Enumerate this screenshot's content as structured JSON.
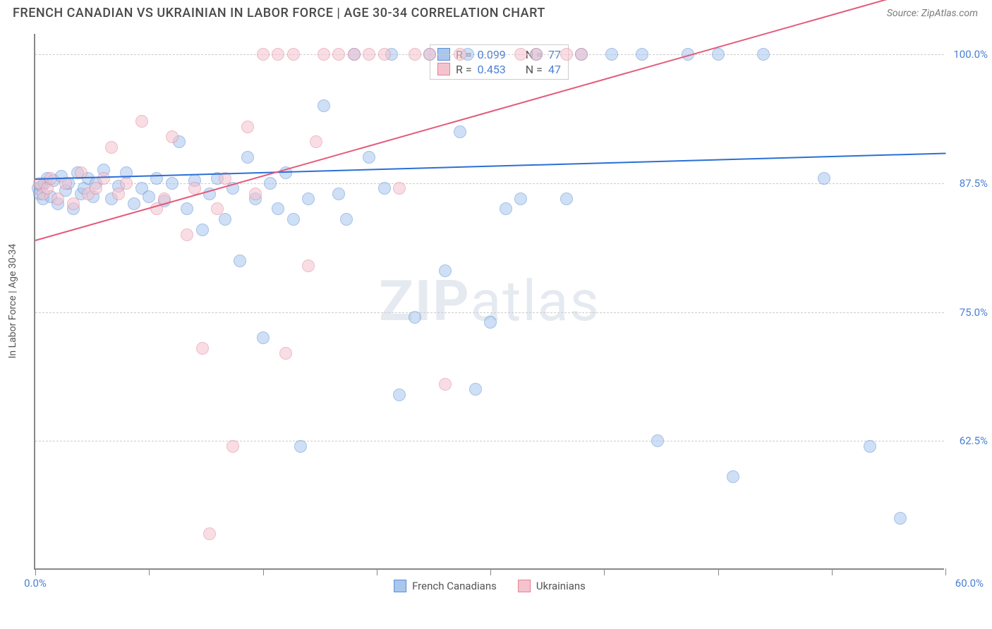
{
  "header": {
    "title": "FRENCH CANADIAN VS UKRAINIAN IN LABOR FORCE | AGE 30-34 CORRELATION CHART",
    "source": "Source: ZipAtlas.com"
  },
  "chart": {
    "type": "scatter",
    "background_color": "#ffffff",
    "grid_color": "#cccccc",
    "axis_color": "#888888",
    "ylabel": "In Labor Force | Age 30-34",
    "label_color": "#555555",
    "label_fontsize": 14,
    "xlim": [
      0,
      60
    ],
    "ylim": [
      50,
      102
    ],
    "x_tick_positions": [
      0,
      7.5,
      15,
      22.5,
      30,
      37.5,
      45,
      52.5,
      60
    ],
    "x_tick_labels": {
      "0": "0.0%",
      "60": "60.0%"
    },
    "y_gridlines": [
      62.5,
      75.0,
      87.5,
      100.0
    ],
    "y_tick_labels": [
      "62.5%",
      "75.0%",
      "87.5%",
      "100.0%"
    ],
    "tick_label_color": "#4a7fd4",
    "tick_label_fontsize": 15,
    "point_radius": 9,
    "point_opacity": 0.55,
    "series": [
      {
        "name": "French Canadians",
        "fill": "#a9c6ed",
        "stroke": "#5b8fd6",
        "trend": {
          "color": "#2a6fd6",
          "y_at_x0": 88.0,
          "y_at_x60": 90.5
        },
        "stats": {
          "R": "0.099",
          "N": "77"
        },
        "points": [
          [
            0.2,
            87.0
          ],
          [
            0.3,
            86.5
          ],
          [
            0.4,
            87.2
          ],
          [
            0.5,
            86.0
          ],
          [
            0.6,
            87.5
          ],
          [
            0.8,
            88.0
          ],
          [
            1.0,
            86.2
          ],
          [
            1.2,
            87.8
          ],
          [
            1.5,
            85.5
          ],
          [
            1.7,
            88.2
          ],
          [
            2.0,
            86.8
          ],
          [
            2.2,
            87.5
          ],
          [
            2.5,
            85.0
          ],
          [
            2.8,
            88.5
          ],
          [
            3.0,
            86.5
          ],
          [
            3.2,
            87.0
          ],
          [
            3.5,
            88.0
          ],
          [
            3.8,
            86.2
          ],
          [
            4.0,
            87.5
          ],
          [
            4.5,
            88.8
          ],
          [
            5.0,
            86.0
          ],
          [
            5.5,
            87.2
          ],
          [
            6.0,
            88.5
          ],
          [
            6.5,
            85.5
          ],
          [
            7.0,
            87.0
          ],
          [
            7.5,
            86.2
          ],
          [
            8.0,
            88.0
          ],
          [
            8.5,
            85.8
          ],
          [
            9.0,
            87.5
          ],
          [
            9.5,
            91.5
          ],
          [
            10.0,
            85.0
          ],
          [
            10.5,
            87.8
          ],
          [
            11.0,
            83.0
          ],
          [
            11.5,
            86.5
          ],
          [
            12.0,
            88.0
          ],
          [
            12.5,
            84.0
          ],
          [
            13.0,
            87.0
          ],
          [
            13.5,
            80.0
          ],
          [
            14.0,
            90.0
          ],
          [
            14.5,
            86.0
          ],
          [
            15.0,
            72.5
          ],
          [
            15.5,
            87.5
          ],
          [
            16.0,
            85.0
          ],
          [
            16.5,
            88.5
          ],
          [
            17.0,
            84.0
          ],
          [
            17.5,
            62.0
          ],
          [
            18.0,
            86.0
          ],
          [
            19.0,
            95.0
          ],
          [
            20.0,
            86.5
          ],
          [
            20.5,
            84.0
          ],
          [
            21.0,
            100.0
          ],
          [
            22.0,
            90.0
          ],
          [
            23.0,
            87.0
          ],
          [
            23.5,
            100.0
          ],
          [
            24.0,
            67.0
          ],
          [
            25.0,
            74.5
          ],
          [
            26.0,
            100.0
          ],
          [
            27.0,
            79.0
          ],
          [
            28.0,
            92.5
          ],
          [
            28.5,
            100.0
          ],
          [
            29.0,
            67.5
          ],
          [
            30.0,
            74.0
          ],
          [
            31.0,
            85.0
          ],
          [
            32.0,
            86.0
          ],
          [
            33.0,
            100.0
          ],
          [
            35.0,
            86.0
          ],
          [
            36.0,
            100.0
          ],
          [
            38.0,
            100.0
          ],
          [
            40.0,
            100.0
          ],
          [
            41.0,
            62.5
          ],
          [
            43.0,
            100.0
          ],
          [
            45.0,
            100.0
          ],
          [
            46.0,
            59.0
          ],
          [
            48.0,
            100.0
          ],
          [
            52.0,
            88.0
          ],
          [
            55.0,
            62.0
          ],
          [
            57.0,
            55.0
          ]
        ]
      },
      {
        "name": "Ukrainians",
        "fill": "#f5c3ce",
        "stroke": "#e08597",
        "trend": {
          "color": "#e45a7a",
          "y_at_x0": 82.0,
          "y_at_x60": 107.0
        },
        "stats": {
          "R": "0.453",
          "N": "47"
        },
        "points": [
          [
            0.3,
            87.5
          ],
          [
            0.5,
            86.5
          ],
          [
            0.8,
            87.0
          ],
          [
            1.0,
            88.0
          ],
          [
            1.5,
            86.0
          ],
          [
            2.0,
            87.5
          ],
          [
            2.5,
            85.5
          ],
          [
            3.0,
            88.5
          ],
          [
            3.5,
            86.5
          ],
          [
            4.0,
            87.0
          ],
          [
            4.5,
            88.0
          ],
          [
            5.0,
            91.0
          ],
          [
            5.5,
            86.5
          ],
          [
            6.0,
            87.5
          ],
          [
            7.0,
            93.5
          ],
          [
            8.0,
            85.0
          ],
          [
            8.5,
            86.0
          ],
          [
            9.0,
            92.0
          ],
          [
            10.0,
            82.5
          ],
          [
            10.5,
            87.0
          ],
          [
            11.0,
            71.5
          ],
          [
            11.5,
            53.5
          ],
          [
            12.0,
            85.0
          ],
          [
            12.5,
            88.0
          ],
          [
            13.0,
            62.0
          ],
          [
            14.0,
            93.0
          ],
          [
            14.5,
            86.5
          ],
          [
            15.0,
            100.0
          ],
          [
            16.0,
            100.0
          ],
          [
            16.5,
            71.0
          ],
          [
            17.0,
            100.0
          ],
          [
            18.0,
            79.5
          ],
          [
            18.5,
            91.5
          ],
          [
            19.0,
            100.0
          ],
          [
            20.0,
            100.0
          ],
          [
            21.0,
            100.0
          ],
          [
            22.0,
            100.0
          ],
          [
            23.0,
            100.0
          ],
          [
            24.0,
            87.0
          ],
          [
            25.0,
            100.0
          ],
          [
            26.0,
            100.0
          ],
          [
            27.0,
            68.0
          ],
          [
            28.0,
            100.0
          ],
          [
            32.0,
            100.0
          ],
          [
            33.0,
            100.0
          ],
          [
            35.0,
            100.0
          ],
          [
            36.0,
            100.0
          ]
        ]
      }
    ]
  },
  "legend_top": {
    "rows": [
      {
        "swatch_fill": "#a9c6ed",
        "swatch_stroke": "#5b8fd6",
        "r_label": "R =",
        "r_val": "0.099",
        "n_label": "N =",
        "n_val": "77"
      },
      {
        "swatch_fill": "#f5c3ce",
        "swatch_stroke": "#e08597",
        "r_label": "R =",
        "r_val": "0.453",
        "n_label": "N =",
        "n_val": "47"
      }
    ]
  },
  "legend_bottom": {
    "items": [
      {
        "swatch_fill": "#a9c6ed",
        "swatch_stroke": "#5b8fd6",
        "label": "French Canadians"
      },
      {
        "swatch_fill": "#f5c3ce",
        "swatch_stroke": "#e08597",
        "label": "Ukrainians"
      }
    ]
  },
  "watermark": {
    "bold": "ZIP",
    "rest": "atlas"
  }
}
